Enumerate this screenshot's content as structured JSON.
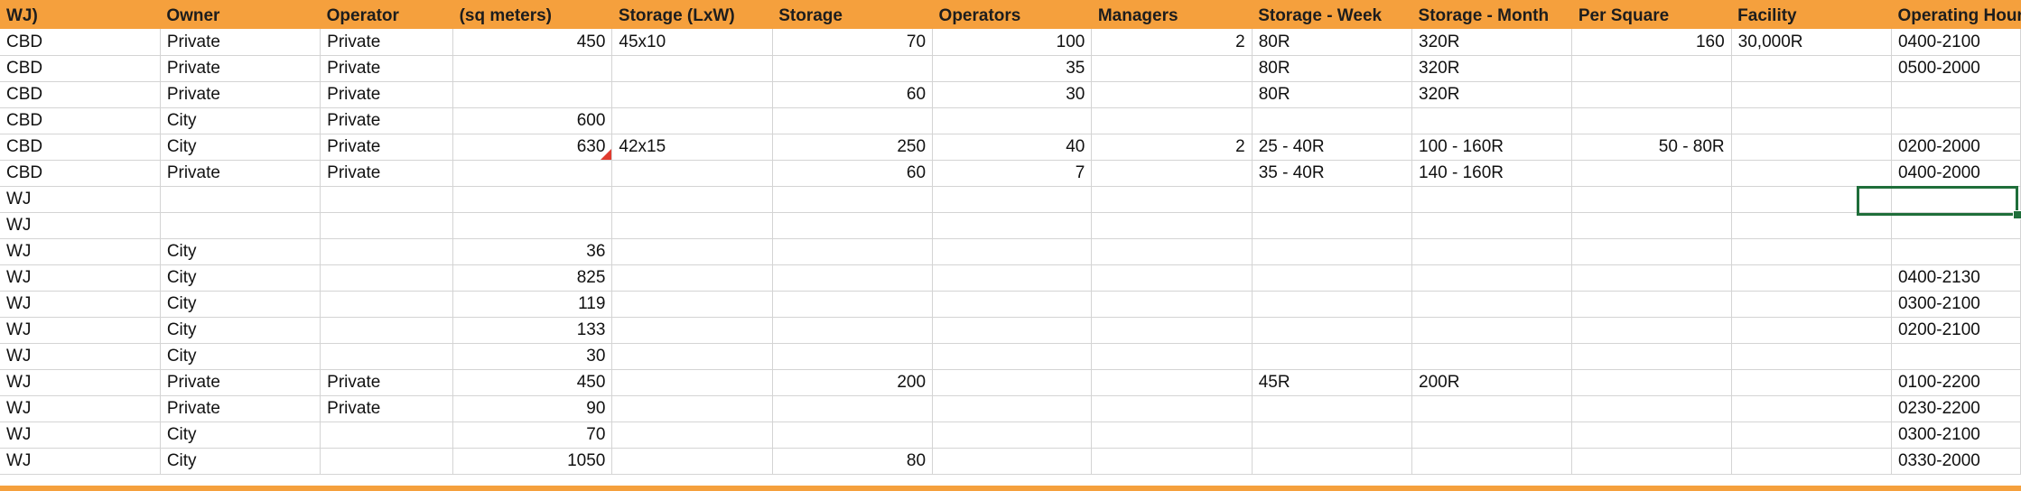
{
  "headers": [
    "WJ)",
    "Owner",
    "Operator",
    "(sq meters)",
    "Storage (LxW)",
    "Storage",
    "Operators",
    "Managers",
    "Storage - Week",
    "Storage - Month",
    "Per Square",
    "Facility",
    "Operating Hours"
  ],
  "rows": [
    [
      "CBD",
      "Private",
      "Private",
      "450",
      "45x10",
      "70",
      "100",
      "2",
      "80R",
      "320R",
      "160",
      "30,000R",
      "0400-2100"
    ],
    [
      "CBD",
      "Private",
      "Private",
      "",
      "",
      "",
      "35",
      "",
      "80R",
      "320R",
      "",
      "",
      "0500-2000"
    ],
    [
      "CBD",
      "Private",
      "Private",
      "",
      "",
      "60",
      "30",
      "",
      "80R",
      "320R",
      "",
      "",
      ""
    ],
    [
      "CBD",
      "City",
      "Private",
      "600",
      "",
      "",
      "",
      "",
      "",
      "",
      "",
      "",
      ""
    ],
    [
      "CBD",
      "City",
      "Private",
      "630",
      "42x15",
      "250",
      "40",
      "2",
      "25 - 40R",
      "100 - 160R",
      "50 - 80R",
      "",
      "0200-2000"
    ],
    [
      "CBD",
      "Private",
      "Private",
      "",
      "",
      "60",
      "7",
      "",
      "35 - 40R",
      "140 - 160R",
      "",
      "",
      "0400-2000"
    ],
    [
      "WJ",
      "",
      "",
      "",
      "",
      "",
      "",
      "",
      "",
      "",
      "",
      "",
      ""
    ],
    [
      "WJ",
      "",
      "",
      "",
      "",
      "",
      "",
      "",
      "",
      "",
      "",
      "",
      ""
    ],
    [
      "WJ",
      "City",
      "",
      "36",
      "",
      "",
      "",
      "",
      "",
      "",
      "",
      "",
      ""
    ],
    [
      "WJ",
      "City",
      "",
      "825",
      "",
      "",
      "",
      "",
      "",
      "",
      "",
      "",
      "0400-2130"
    ],
    [
      "WJ",
      "City",
      "",
      "119",
      "",
      "",
      "",
      "",
      "",
      "",
      "",
      "",
      "0300-2100"
    ],
    [
      "WJ",
      "City",
      "",
      "133",
      "",
      "",
      "",
      "",
      "",
      "",
      "",
      "",
      "0200-2100"
    ],
    [
      "WJ",
      "City",
      "",
      "30",
      "",
      "",
      "",
      "",
      "",
      "",
      "",
      "",
      ""
    ],
    [
      "WJ",
      "Private",
      "Private",
      "450",
      "",
      "200",
      "",
      "",
      "45R",
      "200R",
      "",
      "",
      "0100-2200"
    ],
    [
      "WJ",
      "Private",
      "Private",
      "90",
      "",
      "",
      "",
      "",
      "",
      "",
      "",
      "",
      "0230-2200"
    ],
    [
      "WJ",
      "City",
      "",
      "70",
      "",
      "",
      "",
      "",
      "",
      "",
      "",
      "",
      "0300-2100"
    ],
    [
      "WJ",
      "City",
      "",
      "1050",
      "",
      "80",
      "",
      "",
      "",
      "",
      "",
      "",
      "0330-2000"
    ]
  ],
  "colors": {
    "header_fill": "#F5A03D",
    "grid_line": "#d4d4d4",
    "selection_border": "#1f6e3a",
    "comment_marker": "#e03b2f"
  }
}
